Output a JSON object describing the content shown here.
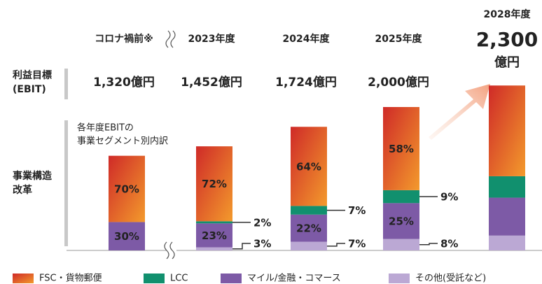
{
  "chart_data": {
    "type": "stacked_bar",
    "categories": [
      "コロナ禍前※",
      "2023年度",
      "2024年度",
      "2025年度",
      "2028年度"
    ],
    "ebit": {
      "row_label": [
        "利益目標",
        "(EBIT)"
      ],
      "values": [
        1320,
        1452,
        1724,
        2000,
        2300
      ],
      "value_labels": [
        "1,320億円",
        "1,452億円",
        "1,724億円",
        "2,000億円",
        "2,300"
      ],
      "target_unit": "億円"
    },
    "row_label": [
      "事業構造",
      "改革"
    ],
    "note": [
      "各年度EBITの",
      "事業セグメント別内訳"
    ],
    "series": [
      {
        "name": "FSC・貨物郵便",
        "color": [
          "#cf2a28",
          "#f39a2c"
        ],
        "values": [
          70,
          72,
          64,
          58,
          55
        ],
        "value_labels": [
          "70%",
          "72%",
          "64%",
          "58%",
          null
        ]
      },
      {
        "name": "LCC",
        "color": "#11906e",
        "values": [
          0,
          2,
          7,
          9,
          13
        ],
        "value_labels": [
          null,
          "2%",
          "7%",
          "9%",
          null
        ]
      },
      {
        "name": "マイル/金融・コマース",
        "color": "#7d5aa6",
        "values": [
          30,
          23,
          22,
          25,
          23
        ],
        "value_labels": [
          "30%",
          "23%",
          "22%",
          "25%",
          null
        ]
      },
      {
        "name": "その他(受託など)",
        "color": "#bba8d4",
        "values": [
          0,
          3,
          7,
          8,
          9
        ],
        "value_labels": [
          null,
          "3%",
          "7%",
          "8%",
          null
        ]
      }
    ]
  }
}
